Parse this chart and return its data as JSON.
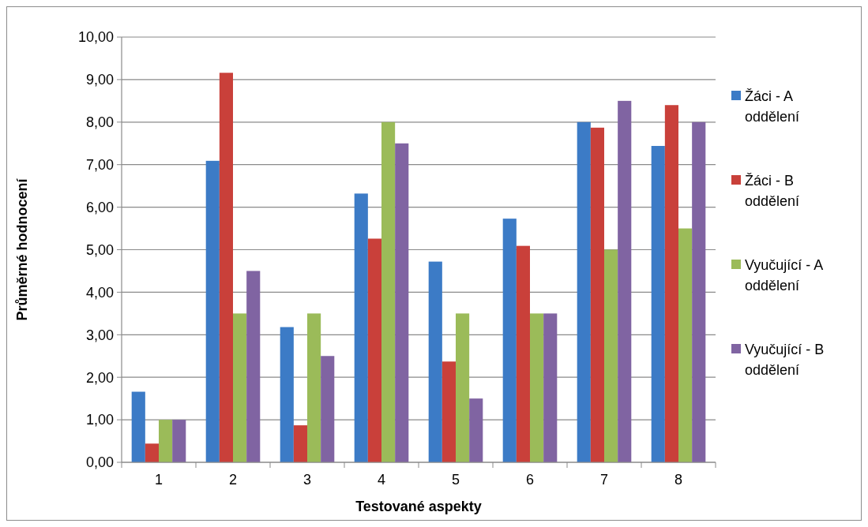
{
  "chart_data": {
    "type": "bar",
    "xlabel": "Testované aspekty",
    "ylabel": "Průměrné hodnocení",
    "categories": [
      "1",
      "2",
      "3",
      "4",
      "5",
      "6",
      "7",
      "8"
    ],
    "series": [
      {
        "name": "Žáci - A oddělení",
        "color": "#3c7bc6",
        "values": [
          1.66,
          7.09,
          3.18,
          6.32,
          4.72,
          5.73,
          8.0,
          7.44
        ]
      },
      {
        "name": "Žáci - B oddělení",
        "color": "#c9403a",
        "values": [
          0.44,
          9.16,
          0.87,
          5.26,
          2.37,
          5.09,
          7.87,
          8.4
        ]
      },
      {
        "name": "Vyučující - A oddělení",
        "color": "#9bbb59",
        "values": [
          1.0,
          3.5,
          3.5,
          8.0,
          3.5,
          3.5,
          5.0,
          5.5
        ]
      },
      {
        "name": "Vyučující - B oddělení",
        "color": "#8064a2",
        "values": [
          1.0,
          4.5,
          2.5,
          7.5,
          1.5,
          3.5,
          8.5,
          8.0
        ]
      }
    ],
    "ylim": [
      0,
      10
    ],
    "yticks": [
      {
        "value": 0,
        "label": "0,00"
      },
      {
        "value": 1,
        "label": "1,00"
      },
      {
        "value": 2,
        "label": "2,00"
      },
      {
        "value": 3,
        "label": "3,00"
      },
      {
        "value": 4,
        "label": "4,00"
      },
      {
        "value": 5,
        "label": "5,00"
      },
      {
        "value": 6,
        "label": "6,00"
      },
      {
        "value": 7,
        "label": "7,00"
      },
      {
        "value": 8,
        "label": "8,00"
      },
      {
        "value": 9,
        "label": "9,00"
      },
      {
        "value": 10,
        "label": "10,00"
      }
    ],
    "grid": "y",
    "legend": "right"
  }
}
